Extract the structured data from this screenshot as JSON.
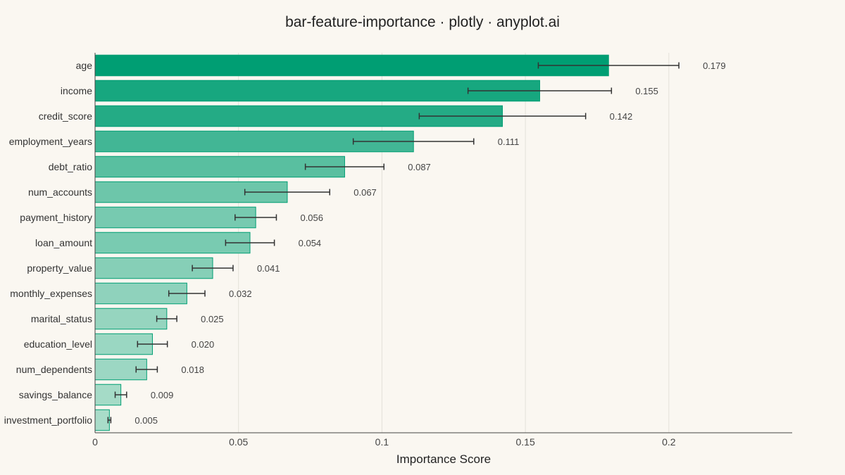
{
  "chart_data": {
    "type": "bar",
    "orientation": "horizontal",
    "title": "bar-feature-importance · plotly · anyplot.ai",
    "xlabel": "Importance Score",
    "ylabel": "",
    "xlim": [
      0,
      0.243
    ],
    "xticks": [
      0,
      0.05,
      0.1,
      0.15,
      0.2
    ],
    "xtick_labels": [
      "0",
      "0.05",
      "0.1",
      "0.15",
      "0.2"
    ],
    "grid": true,
    "categories": [
      "age",
      "income",
      "credit_score",
      "employment_years",
      "debt_ratio",
      "num_accounts",
      "payment_history",
      "loan_amount",
      "property_value",
      "monthly_expenses",
      "marital_status",
      "education_level",
      "num_dependents",
      "savings_balance",
      "investment_portfolio"
    ],
    "values": [
      0.179,
      0.155,
      0.142,
      0.111,
      0.087,
      0.067,
      0.056,
      0.054,
      0.041,
      0.032,
      0.025,
      0.02,
      0.018,
      0.009,
      0.005
    ],
    "value_labels": [
      "0.179",
      "0.155",
      "0.142",
      "0.111",
      "0.087",
      "0.067",
      "0.056",
      "0.054",
      "0.041",
      "0.032",
      "0.025",
      "0.020",
      "0.018",
      "0.009",
      "0.005"
    ],
    "error": [
      0.0245,
      0.025,
      0.029,
      0.021,
      0.0137,
      0.0148,
      0.0072,
      0.0085,
      0.0071,
      0.0063,
      0.0035,
      0.0052,
      0.0037,
      0.002,
      0.0005
    ],
    "colors": {
      "bar_max": "#009E73",
      "bar_min": "#A9DCC9",
      "error_bar": "#333333",
      "background": "#FAF7F1"
    }
  }
}
